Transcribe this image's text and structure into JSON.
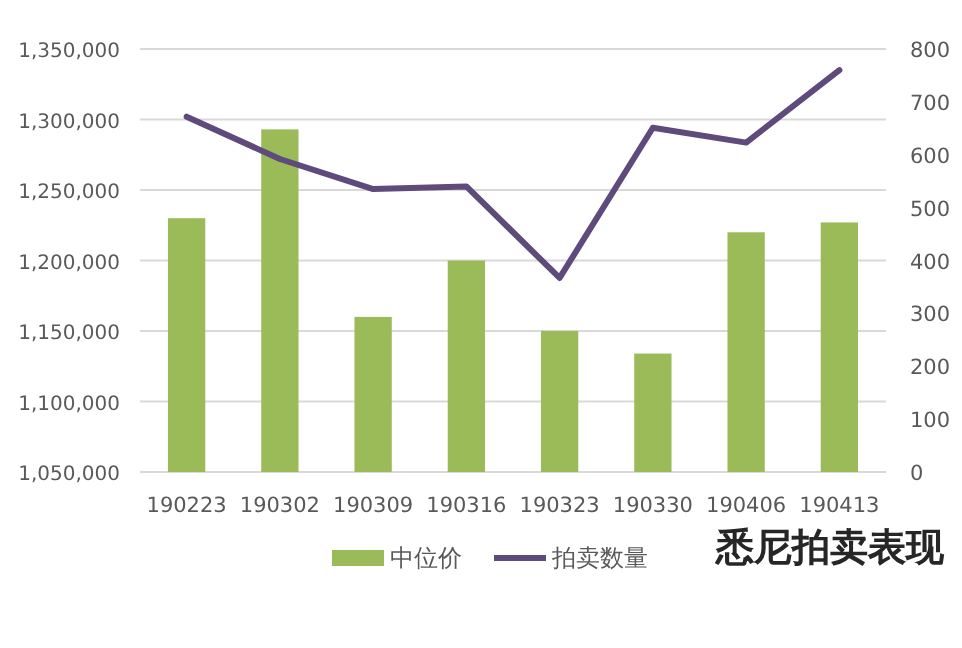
{
  "chart_data": {
    "type": "bar",
    "title": "悉尼拍卖表现",
    "categories": [
      "190223",
      "190302",
      "190309",
      "190316",
      "190323",
      "190330",
      "190406",
      "190413"
    ],
    "series": [
      {
        "name": "中位价",
        "color": "#9bbb59",
        "values": [
          1230000,
          1293000,
          1160000,
          1200000,
          1150000,
          1134000,
          1220000,
          1227000
        ]
      },
      {
        "name": "拍卖数量",
        "type": "line",
        "axis": "y2",
        "color": "#5f4b7b",
        "values": [
          672,
          592,
          535,
          540,
          367,
          651,
          623,
          760
        ]
      }
    ],
    "ylim": [
      1050000,
      1350000
    ],
    "yticks": [
      {
        "value": 1050000,
        "label": "1,050,000"
      },
      {
        "value": 1100000,
        "label": "1,100,000"
      },
      {
        "value": 1150000,
        "label": "1,150,000"
      },
      {
        "value": 1200000,
        "label": "1,200,000"
      },
      {
        "value": 1250000,
        "label": "1,250,000"
      },
      {
        "value": 1300000,
        "label": "1,300,000"
      },
      {
        "value": 1350000,
        "label": "1,350,000"
      }
    ],
    "y2lim": [
      0,
      800
    ],
    "y2ticks": [
      0,
      100,
      200,
      300,
      400,
      500,
      600,
      700,
      800
    ],
    "grid": "y",
    "legend": "bottom",
    "marker": "none",
    "line_style": "solid"
  }
}
